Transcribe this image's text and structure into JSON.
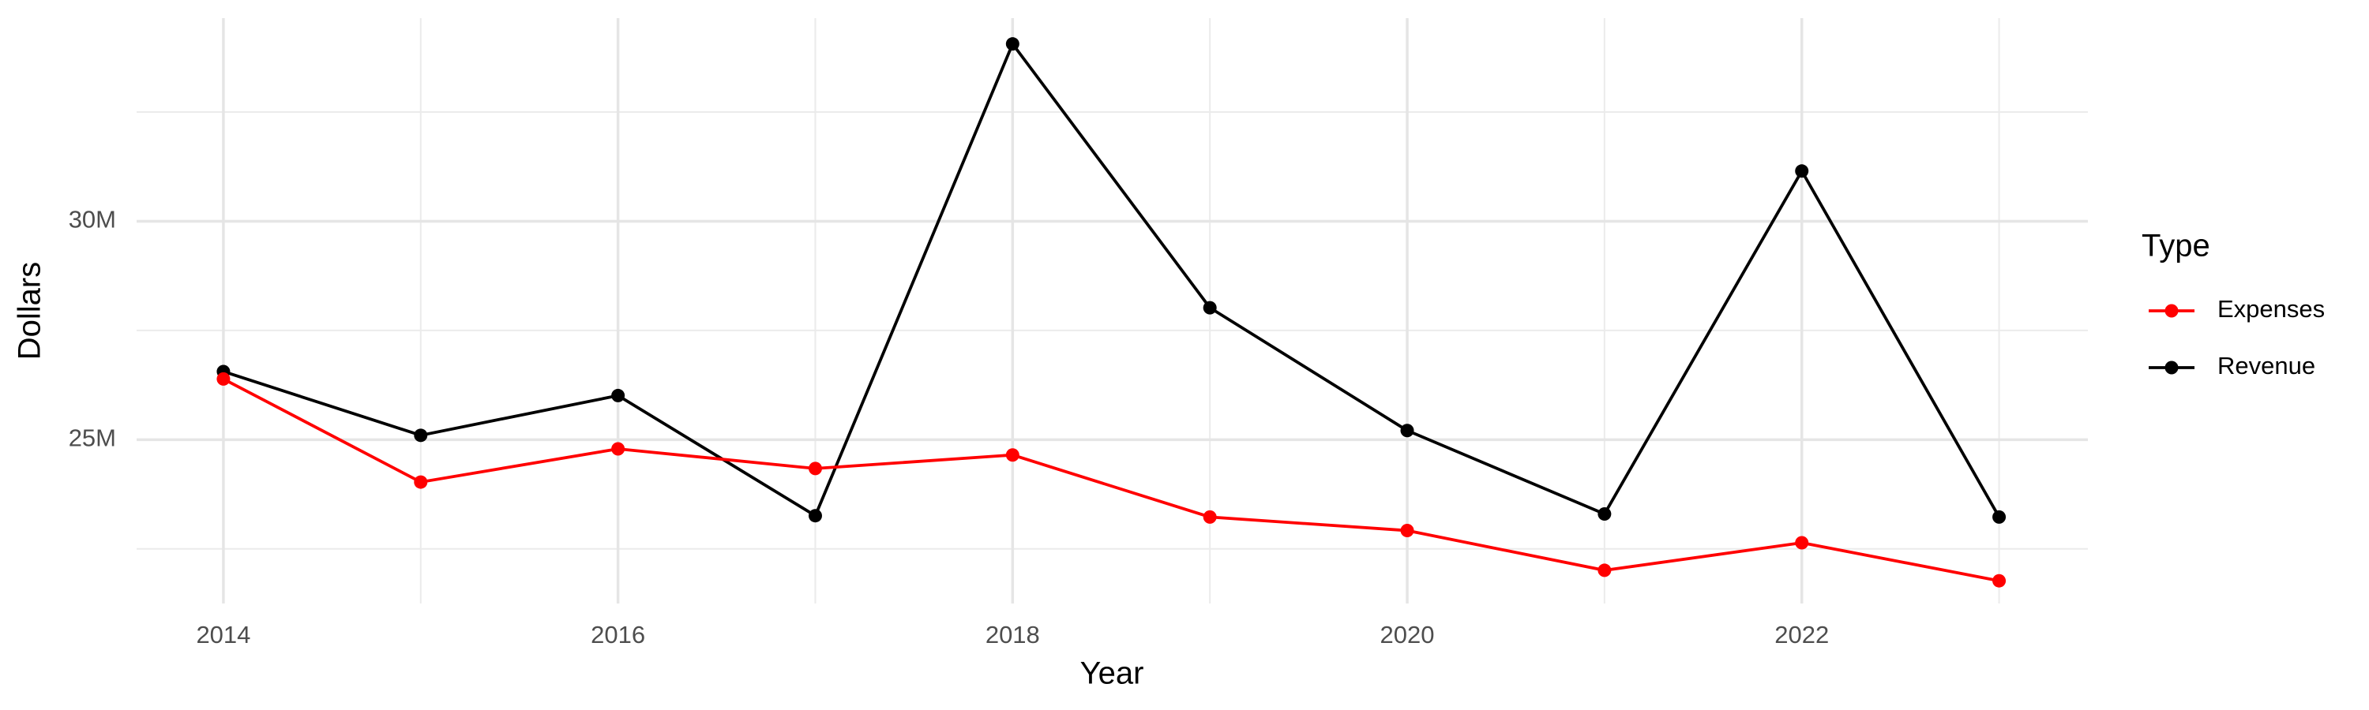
{
  "chart_data": {
    "type": "line",
    "x_label": "Year",
    "y_label": "Dollars",
    "legend_title": "Type",
    "x": [
      2014,
      2015,
      2016,
      2017,
      2018,
      2019,
      2020,
      2021,
      2022,
      2023
    ],
    "series": [
      {
        "name": "Expenses",
        "color": "#ff0000",
        "values": [
          26390000,
          24030000,
          24790000,
          24340000,
          24650000,
          23230000,
          22920000,
          22010000,
          22640000,
          21770000
        ]
      },
      {
        "name": "Revenue",
        "color": "#000000",
        "values": [
          26560000,
          25100000,
          26010000,
          23260000,
          34060000,
          28020000,
          25210000,
          23300000,
          31150000,
          23230000
        ]
      }
    ],
    "xlim": [
      2013.56,
      2023.45
    ],
    "xticks": [
      2014,
      2016,
      2018,
      2020,
      2022
    ],
    "x_minor_ticks": [
      2015,
      2017,
      2019,
      2021,
      2023
    ],
    "ylim": [
      21250000,
      34650000
    ],
    "yticks": [
      {
        "value": 25000000,
        "label": "25M"
      },
      {
        "value": 30000000,
        "label": "30M"
      }
    ],
    "y_minor_ticks": [
      22500000,
      27500000,
      32500000
    ],
    "grid": true,
    "legend_position": "right"
  }
}
